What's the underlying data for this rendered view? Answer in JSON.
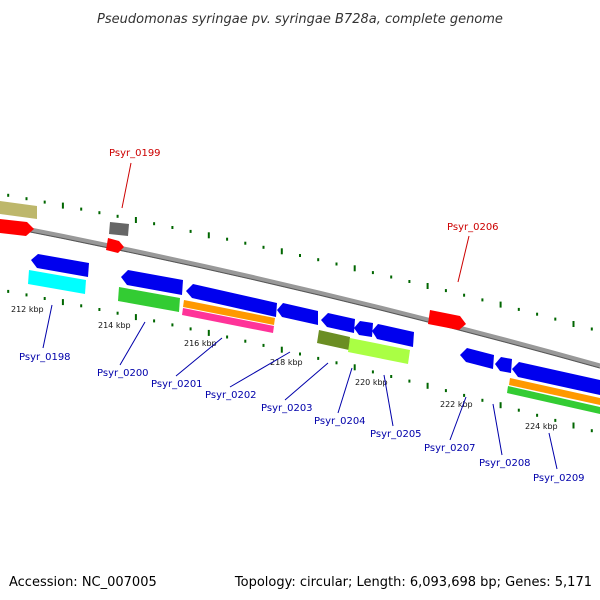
{
  "map": {
    "title": "Pseudomonas syringae pv. syringae B728a, complete genome",
    "accession": "Accession: NC_007005",
    "topology": "Topology: circular; Length: 6,093,698 bp; Genes: 5,171"
  },
  "colors": {
    "red": "#ff0000",
    "blue": "#0000ee",
    "cyan": "#00ffff",
    "green": "#33cc33",
    "orange": "#ff9900",
    "magenta": "#ff3399",
    "olive": "#6b8e23",
    "lightgreen": "#aaff44",
    "gray": "#666666",
    "khaki": "#bdb76b",
    "backbone": "#888888",
    "tick": "#006600",
    "label_red": "#cc0000",
    "label_blue": "#0000aa"
  },
  "kbp_labels": [
    "212 kbp",
    "214 kbp",
    "216 kbp",
    "218 kbp",
    "220 kbp",
    "222 kbp",
    "224 kbp"
  ],
  "gene_labels": [
    {
      "text": "Psyr_0199",
      "color": "red"
    },
    {
      "text": "Psyr_0206",
      "color": "red"
    },
    {
      "text": "Psyr_0198",
      "color": "blue"
    },
    {
      "text": "Psyr_0200",
      "color": "blue"
    },
    {
      "text": "Psyr_0201",
      "color": "blue"
    },
    {
      "text": "Psyr_0202",
      "color": "blue"
    },
    {
      "text": "Psyr_0203",
      "color": "blue"
    },
    {
      "text": "Psyr_0204",
      "color": "blue"
    },
    {
      "text": "Psyr_0205",
      "color": "blue"
    },
    {
      "text": "Psyr_0207",
      "color": "blue"
    },
    {
      "text": "Psyr_0208",
      "color": "blue"
    },
    {
      "text": "Psyr_0209",
      "color": "blue"
    }
  ]
}
